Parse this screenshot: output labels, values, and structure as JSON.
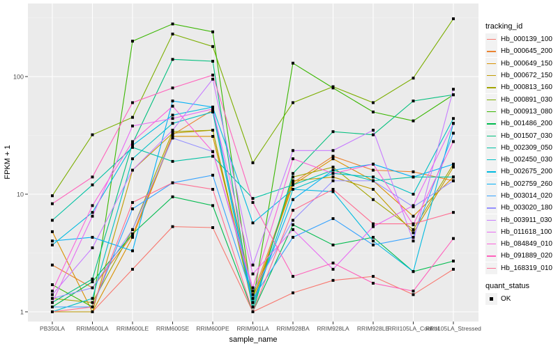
{
  "chart_data": {
    "type": "line",
    "xlabel": "sample_name",
    "ylabel": "FPKM + 1",
    "yscale": "log10",
    "ylim": [
      0.9,
      350
    ],
    "yticks": [
      "1",
      "10",
      "100"
    ],
    "yticks_values": [
      1,
      10,
      100
    ],
    "categories": [
      "PB350LA",
      "RRIM600LA",
      "RRIM600LE",
      "RRIM600SE",
      "RRIM600PE",
      "RRIM901LA",
      "RRIM928BA",
      "RRIM928LA",
      "RRIM928LE",
      "RRII105LA_Control",
      "RRII105LA_Stressed"
    ],
    "legend_title": "tracking_id",
    "legend_position": "right",
    "series": [
      {
        "name": "Hb_000139_100",
        "color": "#F8766D",
        "values": [
          1.0,
          1.0,
          2.3,
          5.3,
          5.2,
          1.0,
          1.45,
          1.85,
          2.0,
          1.4,
          2.3
        ]
      },
      {
        "name": "Hb_000645_200",
        "color": "#EA8331",
        "values": [
          2.5,
          1.6,
          4.5,
          32,
          52,
          1.4,
          12.5,
          21,
          16,
          15.5,
          13
        ]
      },
      {
        "name": "Hb_000649_150",
        "color": "#D89000",
        "values": [
          4.8,
          1.0,
          4.3,
          31,
          31,
          1.3,
          12,
          20,
          13,
          6.5,
          14
        ]
      },
      {
        "name": "Hb_000672_150",
        "color": "#C09B00",
        "values": [
          1.0,
          1.0,
          16,
          33,
          35,
          1.2,
          13,
          14,
          11,
          4.7,
          17
        ]
      },
      {
        "name": "Hb_000813_160",
        "color": "#A3A500",
        "values": [
          1.3,
          1.2,
          5,
          34,
          35,
          1.1,
          14,
          17,
          9,
          5,
          18
        ]
      },
      {
        "name": "Hb_000891_030",
        "color": "#7CAE00",
        "values": [
          9.7,
          32,
          45,
          230,
          180,
          18.5,
          60,
          82,
          60,
          97,
          310
        ]
      },
      {
        "name": "Hb_000913_080",
        "color": "#39B600",
        "values": [
          1.7,
          1.1,
          200,
          280,
          240,
          1.2,
          130,
          80,
          50,
          42,
          70
        ]
      },
      {
        "name": "Hb_001486_200",
        "color": "#00BB4E",
        "values": [
          1.1,
          1.8,
          4.6,
          9.5,
          8,
          1.0,
          5.5,
          3.7,
          4.3,
          2.2,
          2.7
        ]
      },
      {
        "name": "Hb_001507_030",
        "color": "#00BF7D",
        "values": [
          1.2,
          1.9,
          27,
          140,
          135,
          1.0,
          15,
          34,
          32,
          62,
          70
        ]
      },
      {
        "name": "Hb_002309_050",
        "color": "#00C1A3",
        "values": [
          6,
          12,
          25,
          19,
          21,
          9.2,
          12,
          16,
          13,
          14,
          14
        ]
      },
      {
        "name": "Hb_002450_030",
        "color": "#00BFC4",
        "values": [
          1.0,
          1.3,
          20,
          40,
          50,
          1.1,
          11,
          15,
          14,
          10,
          44
        ]
      },
      {
        "name": "Hb_002675_200",
        "color": "#00BAE0",
        "values": [
          3.7,
          7,
          26,
          47,
          55,
          5.7,
          11,
          10.5,
          4,
          2.2,
          40
        ]
      },
      {
        "name": "Hb_002759_260",
        "color": "#00B0F6",
        "values": [
          4,
          4.3,
          3.3,
          62,
          55,
          1.2,
          9,
          16,
          18,
          14,
          18
        ]
      },
      {
        "name": "Hb_003014_020",
        "color": "#35A2FF",
        "values": [
          1.1,
          1.1,
          7.5,
          12.5,
          14.5,
          1.3,
          4.3,
          6.2,
          3.7,
          4.3,
          33
        ]
      },
      {
        "name": "Hb_003020_180",
        "color": "#9590FF",
        "values": [
          1.3,
          1.6,
          5,
          30,
          23,
          1.5,
          6,
          13,
          13,
          7.8,
          13
        ]
      },
      {
        "name": "Hb_003911_030",
        "color": "#C77CFF",
        "values": [
          1.4,
          3.5,
          16,
          35,
          95,
          2.5,
          23.5,
          23.5,
          35,
          4,
          78
        ]
      },
      {
        "name": "Hb_011618_100",
        "color": "#E76BF3",
        "values": [
          1.2,
          6.5,
          38,
          44,
          53,
          2.1,
          5,
          2.3,
          5.3,
          8,
          40
        ]
      },
      {
        "name": "Hb_084849_010",
        "color": "#FA62DB",
        "values": [
          1.5,
          8,
          28,
          56,
          23,
          1.6,
          20,
          15,
          18,
          5.5,
          28
        ]
      },
      {
        "name": "Hb_091889_020",
        "color": "#FF62BC",
        "values": [
          8.3,
          14,
          60,
          80,
          103,
          8.5,
          2,
          2.6,
          1.75,
          1.5,
          4.2
        ]
      },
      {
        "name": "Hb_168319_010",
        "color": "#FF6C91",
        "values": [
          1.0,
          1.1,
          8.5,
          12.5,
          11,
          1.0,
          7.3,
          11,
          5.6,
          5.6,
          7
        ]
      }
    ],
    "quant_status_title": "quant_status",
    "quant_status_entries": [
      "OK"
    ]
  }
}
